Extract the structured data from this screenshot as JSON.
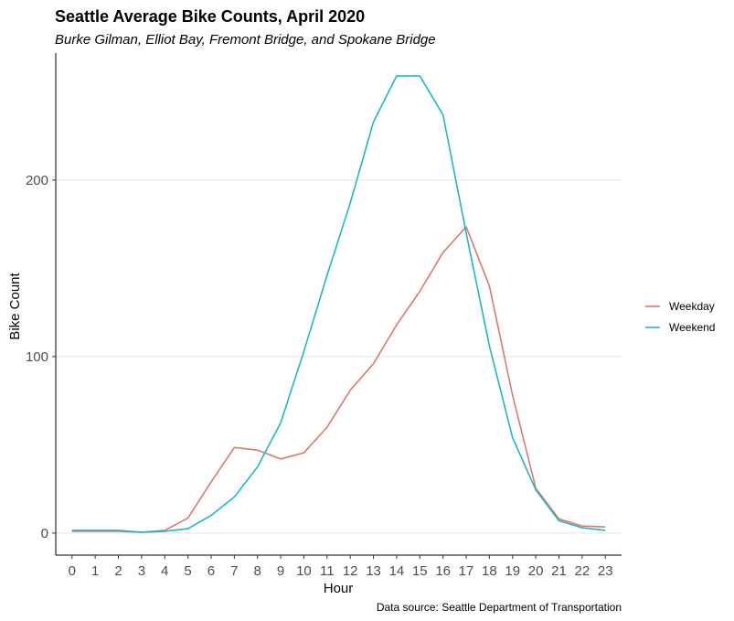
{
  "chart_data": {
    "type": "line",
    "title": "Seattle Average Bike Counts, April 2020",
    "subtitle": "Burke Gilman, Elliot Bay, Fremont Bridge, and Spokane Bridge",
    "xlabel": "Hour",
    "ylabel": "Bike Count",
    "caption": "Data source: Seattle Department of Transportation",
    "x": [
      0,
      1,
      2,
      3,
      4,
      5,
      6,
      7,
      8,
      9,
      10,
      11,
      12,
      13,
      14,
      15,
      16,
      17,
      18,
      19,
      20,
      21,
      22,
      23
    ],
    "x_tick_labels": [
      "0",
      "1",
      "2",
      "3",
      "4",
      "5",
      "6",
      "7",
      "8",
      "9",
      "10",
      "11",
      "12",
      "13",
      "14",
      "15",
      "16",
      "17",
      "18",
      "19",
      "20",
      "21",
      "22",
      "23"
    ],
    "y_ticks": [
      0,
      100,
      200
    ],
    "y_tick_labels": [
      "0",
      "100",
      "200"
    ],
    "xlim": [
      -0.7,
      23.7
    ],
    "ylim": [
      -12.5,
      272
    ],
    "grid": "horizontal major",
    "legend_position": "right",
    "series": [
      {
        "name": "Weekday",
        "color": "#e0776f",
        "values": [
          1,
          1,
          1,
          0.5,
          1.5,
          8.5,
          29,
          48.5,
          47,
          42,
          45.5,
          60,
          81,
          96,
          118,
          137,
          159,
          173.5,
          140,
          78,
          25.5,
          8,
          4,
          3.5
        ]
      },
      {
        "name": "Weekend",
        "color": "#1db9bf",
        "values": [
          1.5,
          1.5,
          1.5,
          0.5,
          1,
          2.5,
          10,
          20.5,
          37.5,
          62.5,
          103,
          146,
          187,
          233,
          259,
          259,
          237,
          170,
          106,
          54,
          24.5,
          7,
          3,
          1.5
        ]
      }
    ]
  }
}
